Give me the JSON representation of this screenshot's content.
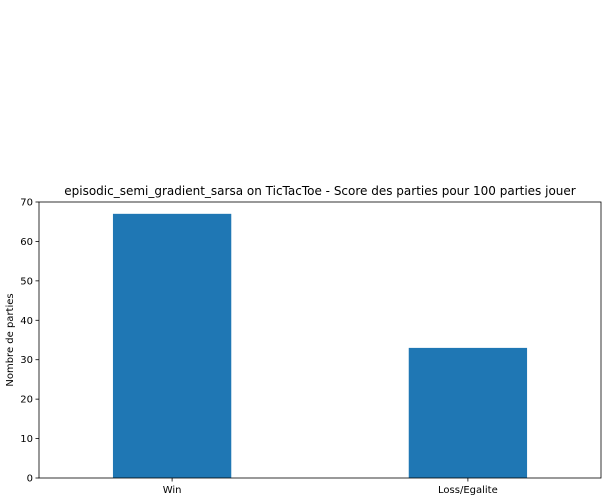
{
  "chart_data": {
    "type": "bar",
    "title": "episodic_semi_gradient_sarsa on TicTacToe - Score des parties pour 100 parties jouer",
    "xlabel": "",
    "ylabel": "Nombre de parties",
    "categories": [
      "Win",
      "Loss/Egalite"
    ],
    "values": [
      67,
      33
    ],
    "ylim": [
      0,
      70
    ],
    "yticks": [
      0,
      10,
      20,
      30,
      40,
      50,
      60,
      70
    ],
    "bar_color": "#1f77b4",
    "grid": false,
    "legend": "none"
  }
}
